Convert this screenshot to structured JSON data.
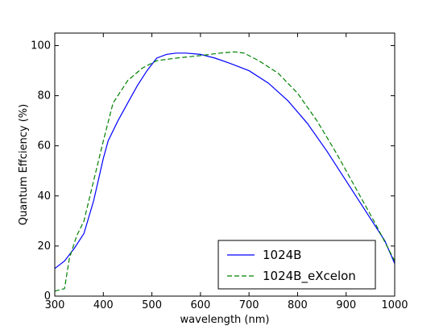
{
  "chart_data": {
    "type": "line",
    "xlabel": "wavelength (nm)",
    "ylabel": "Quantum Effciency (%)",
    "xlim": [
      300,
      1000
    ],
    "ylim": [
      0,
      105
    ],
    "xticks": [
      300,
      400,
      500,
      600,
      700,
      800,
      900,
      1000
    ],
    "yticks": [
      0,
      20,
      40,
      60,
      80,
      100
    ],
    "xtick_labels": [
      "300",
      "400",
      "500",
      "600",
      "700",
      "800",
      "900",
      "1000"
    ],
    "ytick_labels": [
      "0",
      "20",
      "40",
      "60",
      "80",
      "100"
    ],
    "grid": false,
    "legend_position": "lower-right",
    "series": [
      {
        "name": "1024B",
        "color": "#0000ff",
        "style": "solid",
        "x": [
          300,
          320,
          340,
          360,
          380,
          400,
          410,
          430,
          450,
          470,
          490,
          510,
          530,
          550,
          570,
          600,
          630,
          660,
          700,
          740,
          780,
          820,
          860,
          900,
          940,
          980,
          1000
        ],
        "y": [
          11,
          14,
          19,
          25,
          38,
          55,
          62,
          70,
          77,
          84,
          90,
          95,
          96.5,
          97,
          97,
          96.5,
          95,
          93,
          90,
          85,
          78,
          69,
          58,
          46,
          34,
          22,
          13
        ]
      },
      {
        "name": "1024B_eXcelon",
        "color": "#008000",
        "style": "dashed",
        "x": [
          300,
          320,
          330,
          345,
          360,
          380,
          400,
          420,
          450,
          480,
          510,
          550,
          600,
          640,
          670,
          690,
          720,
          760,
          800,
          840,
          880,
          920,
          960,
          1000
        ],
        "y": [
          2,
          3,
          15,
          24,
          30,
          46,
          62,
          77,
          86,
          91,
          94,
          95,
          96,
          97,
          97.5,
          97,
          94,
          89,
          81,
          70,
          57,
          43,
          29,
          14
        ]
      }
    ]
  }
}
